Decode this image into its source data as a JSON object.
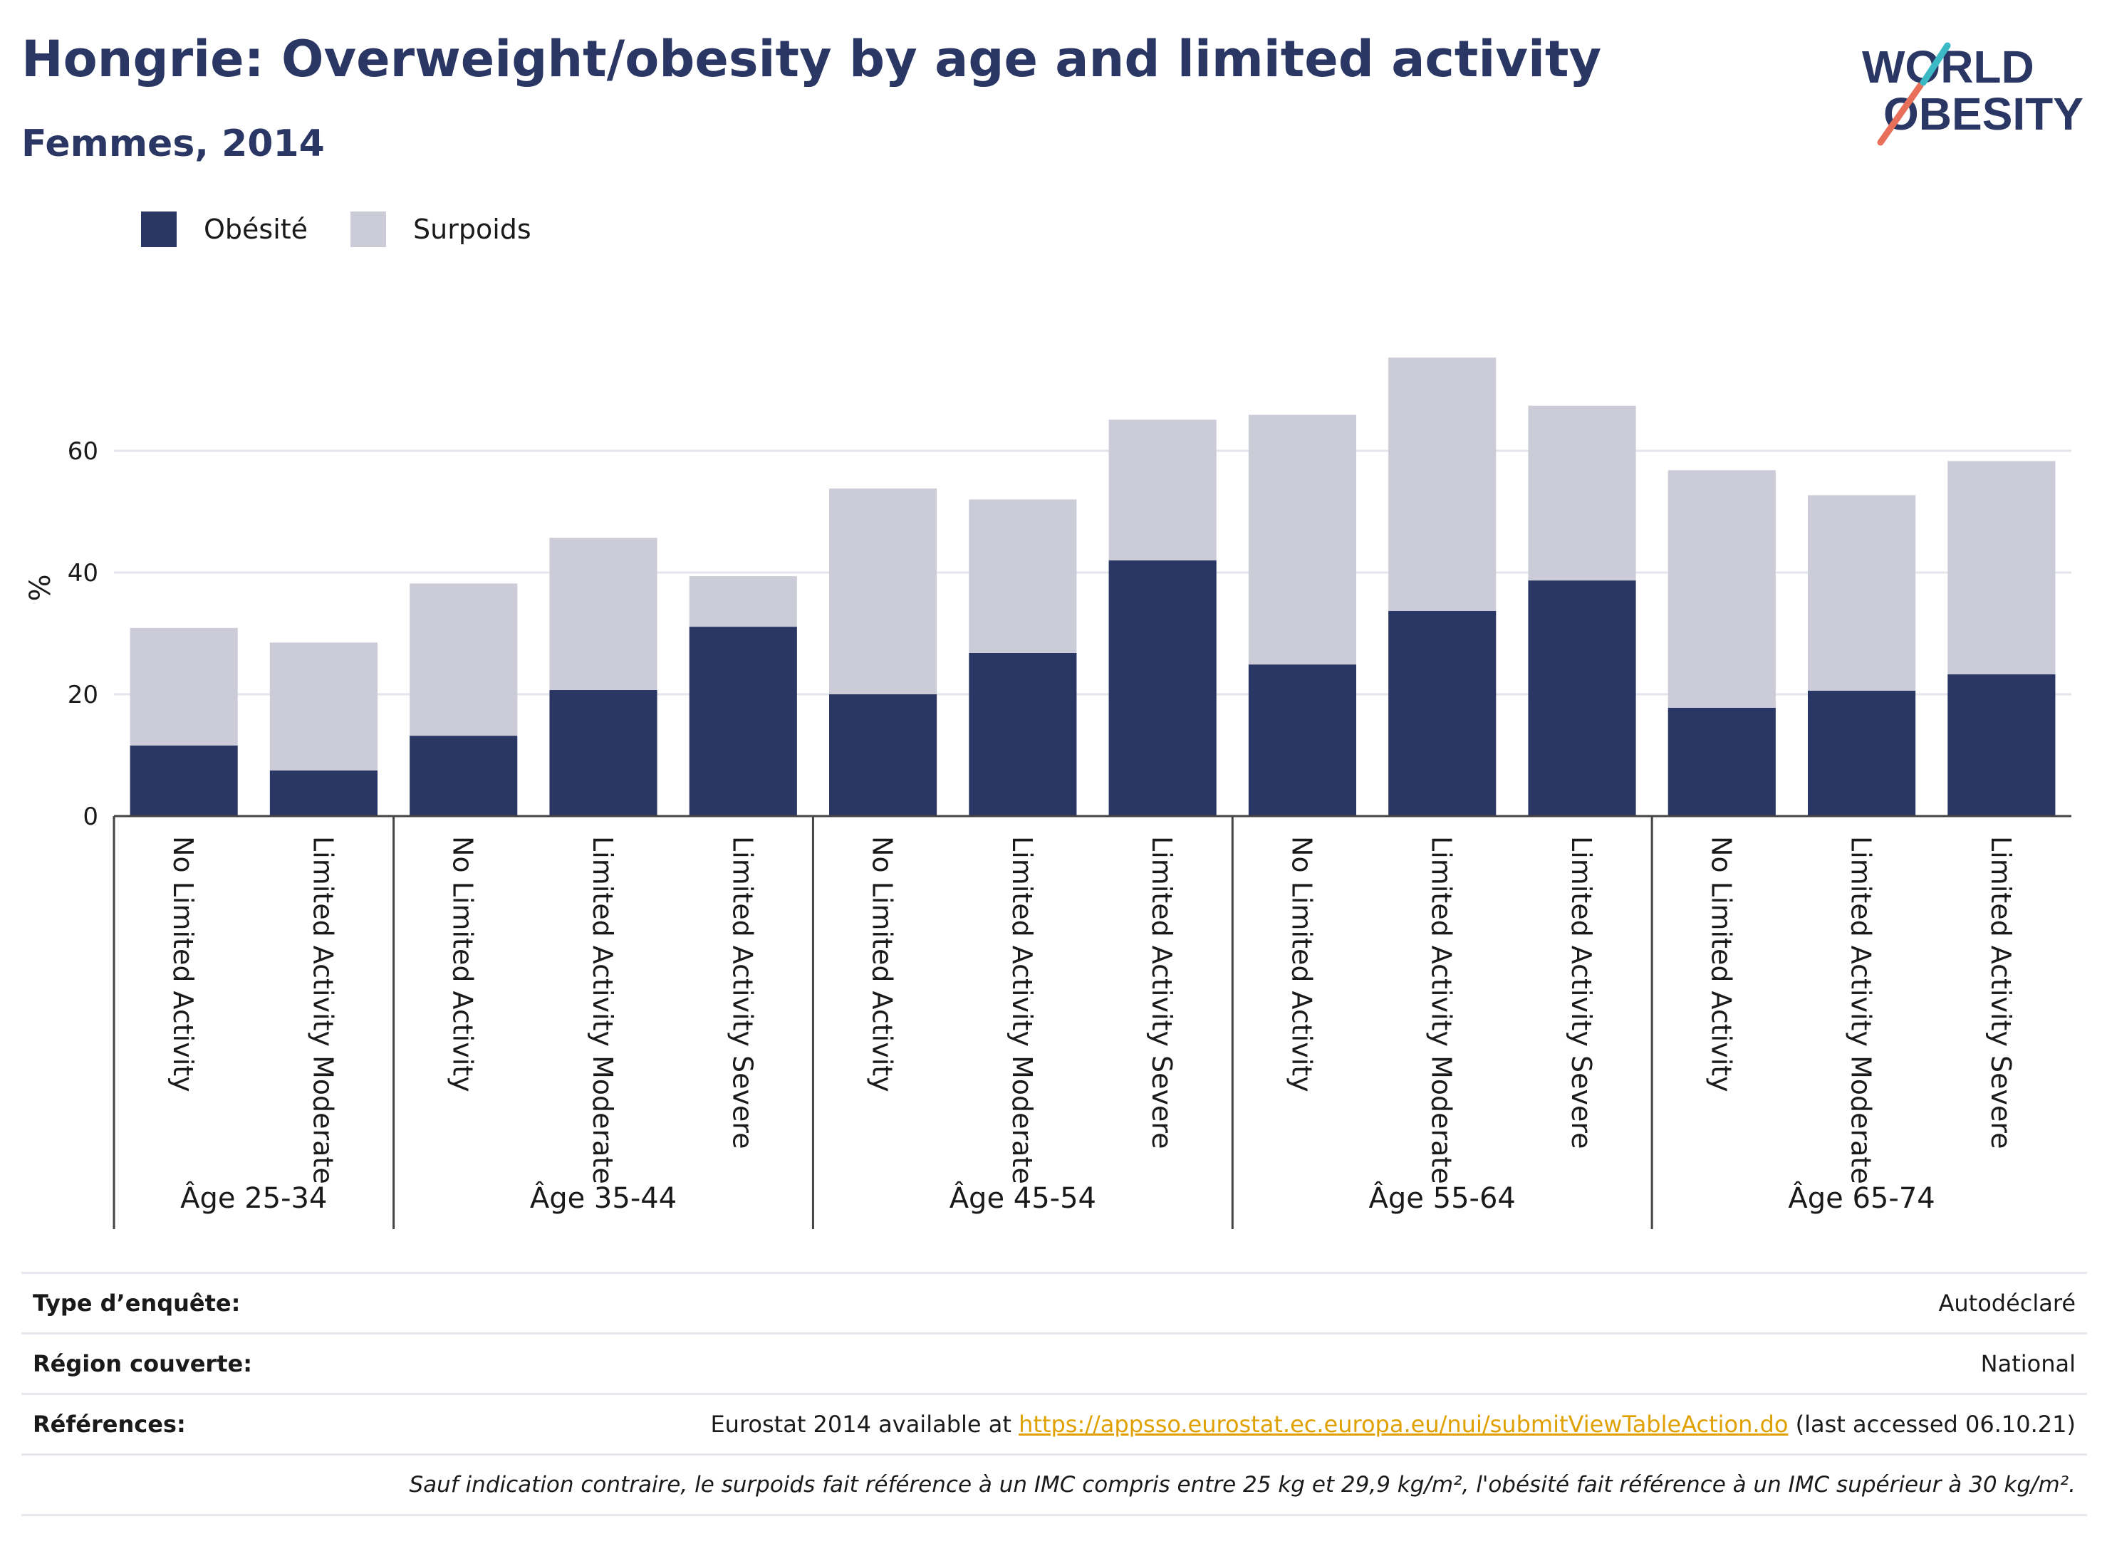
{
  "header": {
    "title": "Hongrie: Overweight/obesity by age and limited activity",
    "subtitle": "Femmes, 2014"
  },
  "logo": {
    "line1": "WORLD",
    "line2": "OBESITY"
  },
  "legend": [
    {
      "label": "Obésité",
      "color": "#2a3663"
    },
    {
      "label": "Surpoids",
      "color": "#cbccd8"
    }
  ],
  "chart_data": {
    "type": "bar",
    "stacked": true,
    "ylabel": "%",
    "ylim": [
      0,
      80
    ],
    "yticks": [
      0,
      20,
      40,
      60
    ],
    "grid": true,
    "legend_position": "top-left",
    "groups": [
      {
        "label": "Âge 25-34",
        "categories": [
          "No Limited Activity",
          "Limited Activity Moderate"
        ]
      },
      {
        "label": "Âge 35-44",
        "categories": [
          "No Limited Activity",
          "Limited Activity Moderate",
          "Limited Activity Severe"
        ]
      },
      {
        "label": "Âge 45-54",
        "categories": [
          "No Limited Activity",
          "Limited Activity Moderate",
          "Limited Activity Severe"
        ]
      },
      {
        "label": "Âge 55-64",
        "categories": [
          "No Limited Activity",
          "Limited Activity Moderate",
          "Limited Activity Severe"
        ]
      },
      {
        "label": "Âge 65-74",
        "categories": [
          "No Limited Activity",
          "Limited Activity Moderate",
          "Limited Activity Severe"
        ]
      }
    ],
    "series": [
      {
        "name": "Obésité",
        "color": "#2a3663",
        "values": [
          11.6,
          7.5,
          13.2,
          20.7,
          31.1,
          20.0,
          26.8,
          42.0,
          24.9,
          33.7,
          38.7,
          17.8,
          20.6,
          23.3
        ]
      },
      {
        "name": "Surpoids",
        "color": "#cbccd8",
        "values": [
          19.3,
          21.0,
          25.0,
          25.0,
          8.3,
          33.8,
          25.2,
          23.1,
          41.0,
          41.6,
          28.7,
          39.0,
          32.1,
          35.0
        ]
      }
    ]
  },
  "footer": {
    "survey_label": "Type d’enquête:",
    "survey_value": "Autodéclaré",
    "region_label": "Région couverte:",
    "region_value": "National",
    "refs_label": "Références:",
    "refs_prefix": "Eurostat 2014 available at ",
    "refs_link": "https://appsso.eurostat.ec.europa.eu/nui/submitViewTableAction.do",
    "refs_suffix": " (last accessed 06.10.21)",
    "note": "Sauf indication contraire, le surpoids fait référence à un IMC compris entre 25 kg et 29,9 kg/m², l'obésité fait référence à un IMC supérieur à 30 kg/m²."
  }
}
